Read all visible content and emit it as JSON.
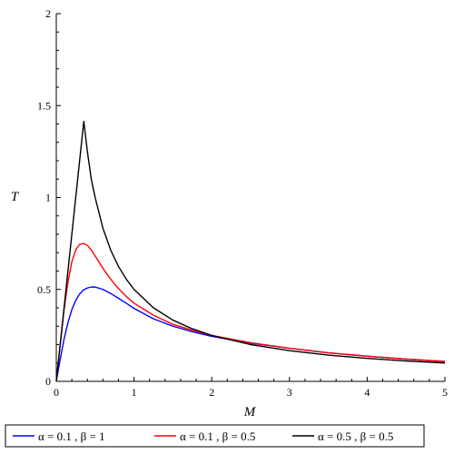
{
  "chart_data": {
    "type": "line",
    "title": "",
    "xlabel": "M",
    "ylabel": "T",
    "xlim": [
      0,
      5
    ],
    "ylim": [
      0,
      2
    ],
    "x_ticks": [
      0,
      1,
      2,
      3,
      4,
      5
    ],
    "x_tick_labels": [
      "0",
      "1",
      "2",
      "3",
      "4",
      "5"
    ],
    "y_ticks": [
      0,
      0.5,
      1,
      1.5,
      2
    ],
    "y_tick_labels": [
      "0",
      "0.5",
      "1",
      "1.5",
      "2"
    ],
    "grid": false,
    "legend_position": "bottom",
    "series": [
      {
        "name": "α = 0.1 , β = 1",
        "color": "#0000ff",
        "points": [
          [
            0,
            0
          ],
          [
            0.05,
            0.12
          ],
          [
            0.1,
            0.23
          ],
          [
            0.15,
            0.32
          ],
          [
            0.2,
            0.39
          ],
          [
            0.25,
            0.44
          ],
          [
            0.3,
            0.475
          ],
          [
            0.35,
            0.497
          ],
          [
            0.4,
            0.508
          ],
          [
            0.45,
            0.513
          ],
          [
            0.5,
            0.513
          ],
          [
            0.6,
            0.5
          ],
          [
            0.7,
            0.478
          ],
          [
            0.8,
            0.452
          ],
          [
            0.9,
            0.425
          ],
          [
            1.0,
            0.397
          ],
          [
            1.25,
            0.34
          ],
          [
            1.5,
            0.3
          ],
          [
            1.75,
            0.27
          ],
          [
            2.0,
            0.245
          ],
          [
            2.5,
            0.208
          ],
          [
            3.0,
            0.18
          ],
          [
            3.5,
            0.155
          ],
          [
            4.0,
            0.137
          ],
          [
            4.5,
            0.121
          ],
          [
            5.0,
            0.108
          ]
        ]
      },
      {
        "name": "α = 0.1 , β = 0.5",
        "color": "#ff0000",
        "points": [
          [
            0,
            0
          ],
          [
            0.05,
            0.2
          ],
          [
            0.1,
            0.39
          ],
          [
            0.15,
            0.54
          ],
          [
            0.2,
            0.65
          ],
          [
            0.25,
            0.715
          ],
          [
            0.3,
            0.745
          ],
          [
            0.35,
            0.75
          ],
          [
            0.4,
            0.74
          ],
          [
            0.45,
            0.715
          ],
          [
            0.5,
            0.682
          ],
          [
            0.6,
            0.615
          ],
          [
            0.7,
            0.555
          ],
          [
            0.8,
            0.505
          ],
          [
            0.9,
            0.462
          ],
          [
            1.0,
            0.425
          ],
          [
            1.25,
            0.36
          ],
          [
            1.5,
            0.31
          ],
          [
            1.75,
            0.278
          ],
          [
            2.0,
            0.25
          ],
          [
            2.5,
            0.21
          ],
          [
            3.0,
            0.18
          ],
          [
            3.5,
            0.155
          ],
          [
            4.0,
            0.137
          ],
          [
            4.5,
            0.121
          ],
          [
            5.0,
            0.108
          ]
        ]
      },
      {
        "name": "α = 0.5 , β = 0.5",
        "color": "#000000",
        "points": [
          [
            0,
            0
          ],
          [
            0.05,
            0.2
          ],
          [
            0.1,
            0.4
          ],
          [
            0.15,
            0.6
          ],
          [
            0.2,
            0.8
          ],
          [
            0.25,
            1.0
          ],
          [
            0.3,
            1.2
          ],
          [
            0.354,
            1.414
          ],
          [
            0.4,
            1.25
          ],
          [
            0.45,
            1.1
          ],
          [
            0.5,
            1.0
          ],
          [
            0.6,
            0.833
          ],
          [
            0.7,
            0.714
          ],
          [
            0.8,
            0.625
          ],
          [
            0.9,
            0.556
          ],
          [
            1.0,
            0.5
          ],
          [
            1.25,
            0.4
          ],
          [
            1.5,
            0.333
          ],
          [
            1.75,
            0.286
          ],
          [
            2.0,
            0.25
          ],
          [
            2.5,
            0.2
          ],
          [
            3.0,
            0.167
          ],
          [
            3.5,
            0.143
          ],
          [
            4.0,
            0.125
          ],
          [
            4.5,
            0.111
          ],
          [
            5.0,
            0.1
          ]
        ]
      }
    ]
  }
}
